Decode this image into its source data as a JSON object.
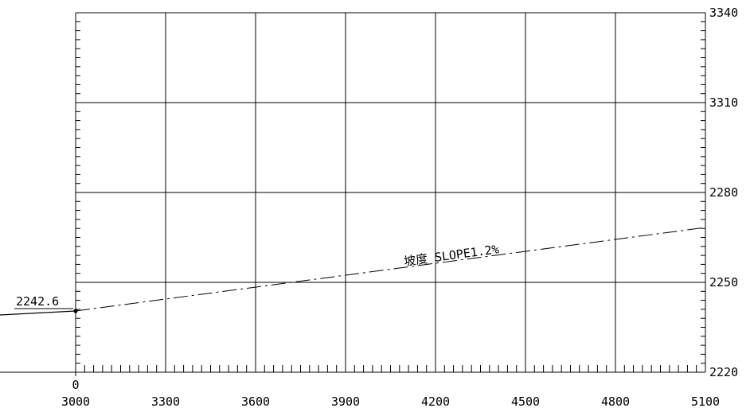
{
  "profile": {
    "x_labels": [
      "3000",
      "3300",
      "3600",
      "3900",
      "4200",
      "4500",
      "4800",
      "5100"
    ],
    "x_values": [
      3000,
      3300,
      3600,
      3900,
      4200,
      4500,
      4800,
      5100
    ],
    "y_labels": [
      "3340",
      "3310",
      "2280",
      "2250",
      "2220"
    ],
    "origin_label": "0",
    "start_elevation_label": "2242.6",
    "slope_label": "坡度 SLOPE1.2%",
    "slope_percent": 1.2
  }
}
